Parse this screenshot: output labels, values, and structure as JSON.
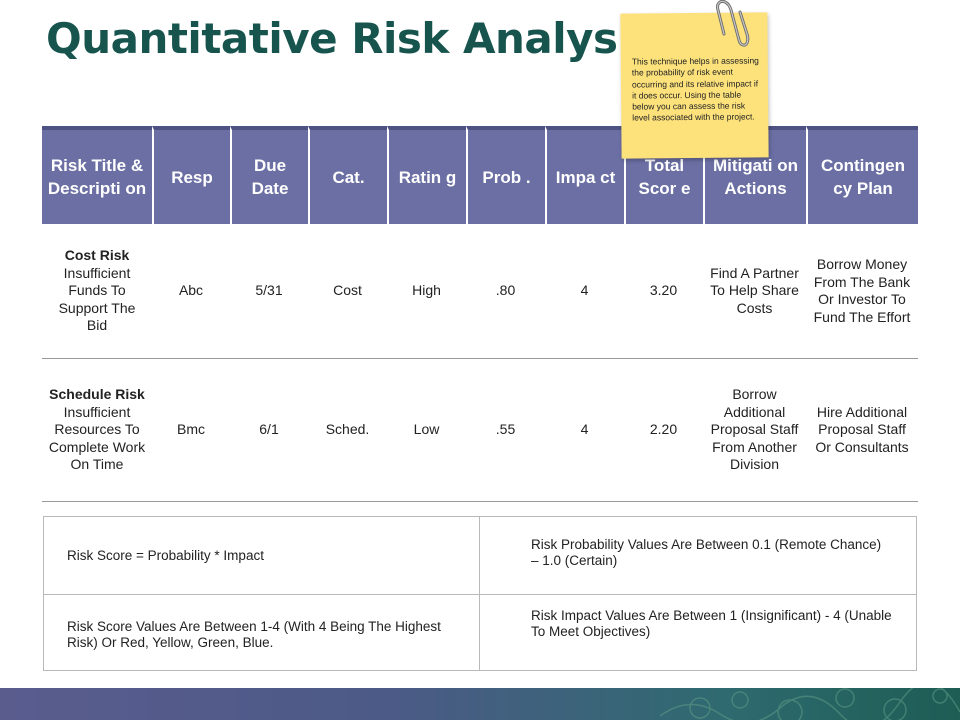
{
  "title": "Quantitative Risk Analysis",
  "table": {
    "headers": [
      "Risk Title & Descripti on",
      "Resp",
      "Due Date",
      "Cat.",
      "Ratin g",
      "Prob .",
      "Impa ct",
      "Total Scor e",
      "Mitigati on Actions",
      "Contingen cy Plan"
    ],
    "rows": [
      {
        "risk_title": "Cost Risk",
        "risk_description": "Insufficient Funds To Support The Bid",
        "resp": "Abc",
        "due_date": "5/31",
        "category": "Cost",
        "rating": "High",
        "prob": ".80",
        "impact": "4",
        "total_score": "3.20",
        "mitigation": "Find A Partner To Help Share Costs",
        "contingency": "Borrow Money From The Bank Or Investor To Fund The Effort"
      },
      {
        "risk_title": "Schedule Risk",
        "risk_description": "Insufficient Resources To Complete Work On Time",
        "resp": "Bmc",
        "due_date": "6/1",
        "category": "Sched.",
        "rating": "Low",
        "prob": ".55",
        "impact": "4",
        "total_score": "2.20",
        "mitigation": "Borrow Additional Proposal Staff From Another Division",
        "contingency": "Hire Additional Proposal Staff Or Consultants"
      }
    ]
  },
  "notes": {
    "risk_score_formula": "Risk Score = Probability * Impact",
    "probability_range": "Risk Probability Values Are Between 0.1 (Remote Chance) – 1.0 (Certain)",
    "score_range": "Risk Score Values Are Between 1-4 (With 4 Being The Highest Risk) Or Red, Yellow, Green, Blue.",
    "impact_range": "Risk Impact Values Are Between 1 (Insignificant) - 4 (Unable To Meet Objectives)"
  },
  "sticky_note": {
    "text": "This technique helps in assessing the probability of risk event occurring and its relative impact if it does occur. Using the table below you can assess the risk level associated with the project."
  },
  "colors": {
    "title": "#17544e",
    "header_bg": "#6b6fa3",
    "sticky_bg": "#fde27c"
  }
}
